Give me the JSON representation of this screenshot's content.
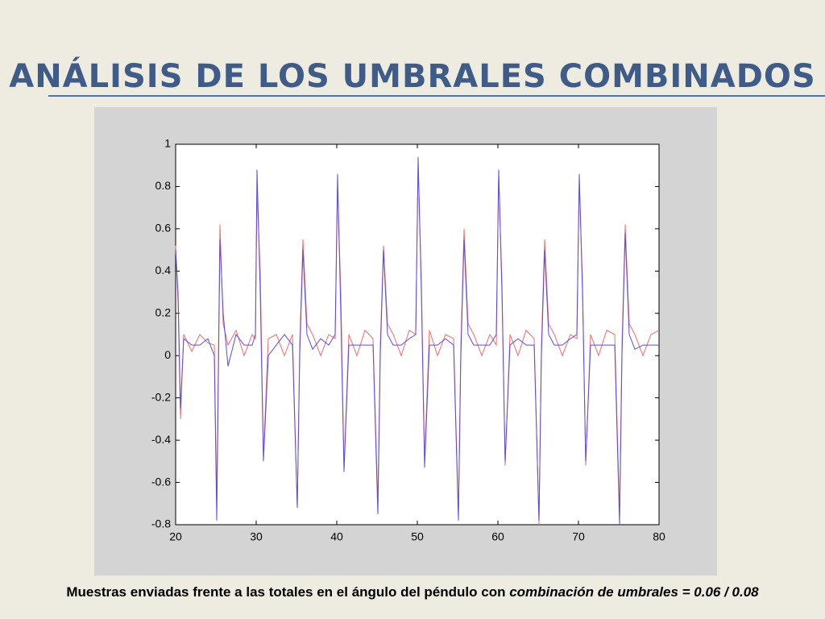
{
  "header": {
    "title": "ANÁLISIS DE LOS UMBRALES COMBINADOS"
  },
  "chart_data": {
    "type": "line",
    "x": [
      20,
      20.3,
      20.6,
      21,
      22,
      23,
      24,
      24.8,
      25.1,
      25.5,
      25.9,
      26.5,
      27.5,
      28.5,
      29.5,
      29.9,
      30.1,
      30.5,
      30.9,
      31.5,
      32.5,
      33.5,
      34.5,
      35.1,
      35.4,
      35.8,
      36.3,
      37,
      38,
      39,
      39.8,
      40.1,
      40.5,
      40.9,
      41.5,
      42.5,
      43.5,
      44.5,
      45.1,
      45.4,
      45.8,
      46.3,
      47,
      48,
      49,
      49.8,
      50.1,
      50.5,
      50.9,
      51.5,
      52.5,
      53.5,
      54.5,
      55.1,
      55.4,
      55.8,
      56.3,
      57,
      58,
      59,
      59.8,
      60.1,
      60.5,
      60.9,
      61.5,
      62.5,
      63.5,
      64.5,
      65.1,
      65.4,
      65.8,
      66.3,
      67,
      68,
      69,
      69.8,
      70.1,
      70.5,
      70.9,
      71.5,
      72.5,
      73.5,
      74.5,
      75.1,
      75.4,
      75.8,
      76.3,
      77,
      78,
      79,
      80
    ],
    "series": [
      {
        "color": "#f26d6d",
        "values": [
          0.52,
          0.25,
          -0.3,
          0.1,
          0.02,
          0.1,
          0.06,
          0.05,
          -0.7,
          0.62,
          0.15,
          0.05,
          0.12,
          0.0,
          0.1,
          0.08,
          0.78,
          0.4,
          -0.48,
          0.08,
          0.1,
          0.0,
          0.1,
          -0.72,
          0.05,
          0.55,
          0.15,
          0.1,
          0.0,
          0.1,
          0.08,
          0.8,
          0.3,
          -0.53,
          0.1,
          0.0,
          0.12,
          0.08,
          -0.7,
          0.05,
          0.52,
          0.15,
          0.1,
          0.0,
          0.12,
          0.1,
          0.9,
          0.35,
          -0.5,
          0.12,
          0.0,
          0.1,
          0.08,
          -0.75,
          0.05,
          0.6,
          0.15,
          0.1,
          0.0,
          0.1,
          0.05,
          0.85,
          0.35,
          -0.52,
          0.1,
          0.0,
          0.12,
          0.08,
          -0.8,
          0.05,
          0.55,
          0.15,
          0.1,
          0.0,
          0.1,
          0.08,
          0.82,
          0.35,
          -0.52,
          0.1,
          0.0,
          0.12,
          0.1,
          -0.75,
          0.05,
          0.62,
          0.15,
          0.1,
          0.0,
          0.1,
          0.12
        ]
      },
      {
        "color": "#5a4de0",
        "values": [
          0.5,
          0.3,
          -0.25,
          0.08,
          0.05,
          0.05,
          0.08,
          0.0,
          -0.78,
          0.55,
          0.2,
          -0.05,
          0.1,
          0.05,
          0.05,
          0.1,
          0.88,
          0.3,
          -0.5,
          0.0,
          0.05,
          0.1,
          0.05,
          -0.72,
          0.0,
          0.5,
          0.1,
          0.03,
          0.08,
          0.05,
          0.1,
          0.86,
          0.2,
          -0.55,
          0.05,
          0.05,
          0.05,
          0.05,
          -0.75,
          0.0,
          0.5,
          0.1,
          0.05,
          0.05,
          0.08,
          0.1,
          0.94,
          0.3,
          -0.53,
          0.05,
          0.05,
          0.08,
          0.05,
          -0.78,
          0.0,
          0.55,
          0.1,
          0.05,
          0.05,
          0.05,
          0.1,
          0.88,
          0.3,
          -0.5,
          0.05,
          0.08,
          0.05,
          0.05,
          -0.78,
          0.0,
          0.5,
          0.1,
          0.05,
          0.05,
          0.08,
          0.1,
          0.86,
          0.3,
          -0.5,
          0.05,
          0.05,
          0.05,
          0.05,
          -0.8,
          0.0,
          0.58,
          0.1,
          0.03,
          0.05,
          0.05,
          0.05
        ]
      }
    ],
    "xlim": [
      20,
      80
    ],
    "xticks": [
      20,
      30,
      40,
      50,
      60,
      70,
      80
    ],
    "ylim": [
      -0.8,
      1
    ],
    "yticks": [
      -0.8,
      -0.6,
      -0.4,
      -0.2,
      0,
      0.2,
      0.4,
      0.6,
      0.8,
      1
    ]
  },
  "caption": {
    "text": "Muestras enviadas frente a las totales en el ángulo del péndulo con ",
    "emphasis": "combinación de umbrales = 0.06 / 0.08"
  }
}
